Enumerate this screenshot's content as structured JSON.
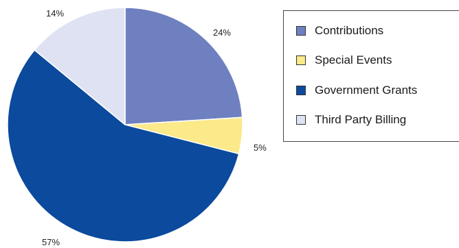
{
  "chart_data": {
    "type": "pie",
    "categories": [
      "Contributions",
      "Special Events",
      "Government Grants",
      "Third Party Billing"
    ],
    "values": [
      24,
      5,
      57,
      14
    ],
    "labels": [
      "24%",
      "5%",
      "57%",
      "14%"
    ],
    "colors": [
      "#6f80c0",
      "#fbe98a",
      "#0b4a9c",
      "#dee2f2"
    ],
    "title": "",
    "legend_position": "right",
    "start_angle_deg": 0,
    "direction": "clockwise",
    "slice_edge_color": "#ffffff"
  },
  "legend": {
    "items": [
      {
        "label": "Contributions",
        "color": "#6f80c0"
      },
      {
        "label": "Special Events",
        "color": "#fbe98a"
      },
      {
        "label": "Government Grants",
        "color": "#0b4a9c"
      },
      {
        "label": "Third Party Billing",
        "color": "#dee2f2"
      }
    ]
  }
}
